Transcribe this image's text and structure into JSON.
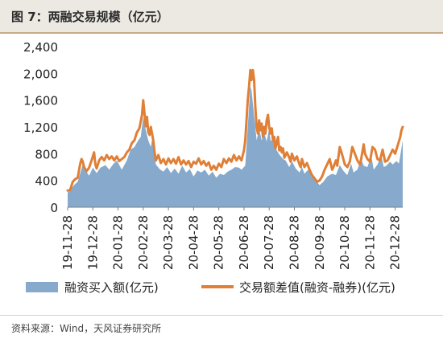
{
  "header": {
    "title": "图 7：两融交易规模（亿元）"
  },
  "footer": {
    "source": "资料来源：Wind，天风证券研究所"
  },
  "colors": {
    "area": "#86a9cc",
    "line": "#e07f36",
    "title_bg": "#ece9e3",
    "title_rule": "#c7a98a"
  },
  "chart_data": {
    "type": "area",
    "title": "两融交易规模（亿元）",
    "ylim": [
      0,
      2400
    ],
    "yticks": [
      0,
      400,
      800,
      1200,
      1600,
      2000,
      2400
    ],
    "ytick_labels": [
      "0",
      "400",
      "800",
      "1,200",
      "1,600",
      "2,000",
      "2,400"
    ],
    "xtick_labels": [
      "19-11-28",
      "19-12-28",
      "20-01-28",
      "20-02-28",
      "20-03-28",
      "20-04-28",
      "20-05-28",
      "20-06-28",
      "20-07-28",
      "20-08-28",
      "20-09-28",
      "20-10-28",
      "20-11-28",
      "20-12-28"
    ],
    "xtick_positions": [
      0,
      20,
      40,
      60,
      80,
      100,
      120,
      140,
      160,
      180,
      200,
      220,
      240,
      260
    ],
    "x_count": 267,
    "legend": {
      "position": "bottom"
    },
    "series": [
      {
        "name": "融资买入额(亿元)",
        "type": "area",
        "points": [
          [
            0,
            220
          ],
          [
            5,
            330
          ],
          [
            8,
            380
          ],
          [
            12,
            640
          ],
          [
            14,
            560
          ],
          [
            17,
            470
          ],
          [
            20,
            590
          ],
          [
            23,
            510
          ],
          [
            26,
            590
          ],
          [
            30,
            630
          ],
          [
            33,
            560
          ],
          [
            36,
            640
          ],
          [
            39,
            700
          ],
          [
            43,
            560
          ],
          [
            47,
            700
          ],
          [
            50,
            860
          ],
          [
            53,
            900
          ],
          [
            56,
            1000
          ],
          [
            58,
            1050
          ],
          [
            60,
            1350
          ],
          [
            62,
            1150
          ],
          [
            64,
            1000
          ],
          [
            66,
            900
          ],
          [
            67,
            1010
          ],
          [
            70,
            640
          ],
          [
            73,
            570
          ],
          [
            76,
            530
          ],
          [
            79,
            600
          ],
          [
            82,
            510
          ],
          [
            85,
            580
          ],
          [
            88,
            500
          ],
          [
            91,
            620
          ],
          [
            94,
            520
          ],
          [
            97,
            570
          ],
          [
            100,
            460
          ],
          [
            103,
            550
          ],
          [
            106,
            520
          ],
          [
            109,
            560
          ],
          [
            112,
            470
          ],
          [
            115,
            530
          ],
          [
            118,
            440
          ],
          [
            121,
            500
          ],
          [
            124,
            480
          ],
          [
            127,
            530
          ],
          [
            130,
            560
          ],
          [
            133,
            600
          ],
          [
            136,
            590
          ],
          [
            138,
            560
          ],
          [
            141,
            620
          ],
          [
            143,
            1200
          ],
          [
            145,
            1800
          ],
          [
            146,
            1750
          ],
          [
            147,
            1550
          ],
          [
            149,
            1200
          ],
          [
            150,
            1000
          ],
          [
            152,
            1180
          ],
          [
            154,
            1000
          ],
          [
            156,
            1120
          ],
          [
            158,
            980
          ],
          [
            160,
            1180
          ],
          [
            161,
            1000
          ],
          [
            164,
            980
          ],
          [
            166,
            850
          ],
          [
            168,
            790
          ],
          [
            171,
            720
          ],
          [
            173,
            700
          ],
          [
            176,
            600
          ],
          [
            178,
            690
          ],
          [
            181,
            580
          ],
          [
            184,
            520
          ],
          [
            186,
            600
          ],
          [
            188,
            500
          ],
          [
            191,
            560
          ],
          [
            194,
            460
          ],
          [
            197,
            400
          ],
          [
            200,
            330
          ],
          [
            203,
            380
          ],
          [
            206,
            460
          ],
          [
            210,
            500
          ],
          [
            213,
            480
          ],
          [
            216,
            630
          ],
          [
            219,
            540
          ],
          [
            222,
            480
          ],
          [
            225,
            650
          ],
          [
            227,
            520
          ],
          [
            230,
            560
          ],
          [
            233,
            720
          ],
          [
            235,
            620
          ],
          [
            238,
            600
          ],
          [
            241,
            770
          ],
          [
            243,
            560
          ],
          [
            246,
            640
          ],
          [
            249,
            770
          ],
          [
            251,
            600
          ],
          [
            253,
            620
          ],
          [
            256,
            680
          ],
          [
            258,
            640
          ],
          [
            261,
            690
          ],
          [
            263,
            650
          ],
          [
            266,
            1000
          ]
        ]
      },
      {
        "name": "交易额差值(融资-融券)(亿元)",
        "type": "line",
        "points": [
          [
            0,
            250
          ],
          [
            2,
            260
          ],
          [
            4,
            380
          ],
          [
            6,
            420
          ],
          [
            8,
            440
          ],
          [
            10,
            650
          ],
          [
            11,
            720
          ],
          [
            12,
            680
          ],
          [
            13,
            600
          ],
          [
            15,
            540
          ],
          [
            17,
            590
          ],
          [
            19,
            700
          ],
          [
            21,
            820
          ],
          [
            22,
            640
          ],
          [
            23,
            580
          ],
          [
            25,
            700
          ],
          [
            27,
            750
          ],
          [
            29,
            700
          ],
          [
            31,
            780
          ],
          [
            33,
            720
          ],
          [
            35,
            760
          ],
          [
            37,
            700
          ],
          [
            39,
            760
          ],
          [
            41,
            690
          ],
          [
            43,
            720
          ],
          [
            45,
            750
          ],
          [
            47,
            820
          ],
          [
            49,
            860
          ],
          [
            51,
            960
          ],
          [
            53,
            1000
          ],
          [
            55,
            1120
          ],
          [
            57,
            1180
          ],
          [
            58,
            1280
          ],
          [
            59,
            1380
          ],
          [
            60,
            1600
          ],
          [
            61,
            1400
          ],
          [
            62,
            1210
          ],
          [
            63,
            1350
          ],
          [
            64,
            1120
          ],
          [
            65,
            1080
          ],
          [
            66,
            1200
          ],
          [
            68,
            1000
          ],
          [
            69,
            820
          ],
          [
            70,
            700
          ],
          [
            72,
            780
          ],
          [
            74,
            660
          ],
          [
            76,
            720
          ],
          [
            78,
            640
          ],
          [
            80,
            730
          ],
          [
            82,
            660
          ],
          [
            84,
            720
          ],
          [
            86,
            650
          ],
          [
            88,
            750
          ],
          [
            90,
            640
          ],
          [
            92,
            700
          ],
          [
            94,
            640
          ],
          [
            96,
            690
          ],
          [
            98,
            600
          ],
          [
            100,
            680
          ],
          [
            102,
            650
          ],
          [
            104,
            730
          ],
          [
            106,
            640
          ],
          [
            108,
            690
          ],
          [
            110,
            620
          ],
          [
            112,
            670
          ],
          [
            114,
            560
          ],
          [
            116,
            620
          ],
          [
            118,
            560
          ],
          [
            120,
            650
          ],
          [
            122,
            600
          ],
          [
            124,
            720
          ],
          [
            126,
            660
          ],
          [
            128,
            730
          ],
          [
            130,
            680
          ],
          [
            132,
            780
          ],
          [
            134,
            700
          ],
          [
            136,
            760
          ],
          [
            138,
            700
          ],
          [
            140,
            850
          ],
          [
            141,
            1000
          ],
          [
            142,
            1300
          ],
          [
            143,
            1600
          ],
          [
            144,
            1800
          ],
          [
            145,
            2050
          ],
          [
            146,
            1900
          ],
          [
            147,
            2050
          ],
          [
            148,
            1900
          ],
          [
            149,
            1500
          ],
          [
            150,
            1200
          ],
          [
            151,
            1100
          ],
          [
            152,
            1300
          ],
          [
            153,
            1150
          ],
          [
            154,
            1250
          ],
          [
            155,
            1050
          ],
          [
            156,
            1200
          ],
          [
            157,
            1100
          ],
          [
            158,
            1300
          ],
          [
            159,
            1380
          ],
          [
            160,
            1200
          ],
          [
            161,
            1100
          ],
          [
            162,
            1180
          ],
          [
            163,
            1000
          ],
          [
            164,
            1050
          ],
          [
            165,
            880
          ],
          [
            166,
            960
          ],
          [
            167,
            1050
          ],
          [
            168,
            850
          ],
          [
            169,
            900
          ],
          [
            170,
            820
          ],
          [
            171,
            880
          ],
          [
            172,
            740
          ],
          [
            174,
            820
          ],
          [
            176,
            740
          ],
          [
            177,
            680
          ],
          [
            178,
            800
          ],
          [
            180,
            700
          ],
          [
            182,
            760
          ],
          [
            184,
            640
          ],
          [
            185,
            600
          ],
          [
            186,
            720
          ],
          [
            188,
            600
          ],
          [
            190,
            660
          ],
          [
            192,
            560
          ],
          [
            194,
            480
          ],
          [
            196,
            430
          ],
          [
            198,
            380
          ],
          [
            200,
            400
          ],
          [
            202,
            460
          ],
          [
            204,
            560
          ],
          [
            206,
            640
          ],
          [
            208,
            720
          ],
          [
            210,
            560
          ],
          [
            211,
            600
          ],
          [
            213,
            700
          ],
          [
            214,
            620
          ],
          [
            216,
            900
          ],
          [
            218,
            780
          ],
          [
            220,
            640
          ],
          [
            222,
            600
          ],
          [
            224,
            680
          ],
          [
            226,
            900
          ],
          [
            228,
            800
          ],
          [
            230,
            700
          ],
          [
            232,
            640
          ],
          [
            233,
            720
          ],
          [
            235,
            940
          ],
          [
            236,
            800
          ],
          [
            238,
            720
          ],
          [
            240,
            680
          ],
          [
            242,
            900
          ],
          [
            244,
            860
          ],
          [
            246,
            720
          ],
          [
            248,
            700
          ],
          [
            250,
            860
          ],
          [
            252,
            680
          ],
          [
            254,
            700
          ],
          [
            256,
            780
          ],
          [
            258,
            860
          ],
          [
            260,
            800
          ],
          [
            262,
            920
          ],
          [
            264,
            1050
          ],
          [
            265,
            1150
          ],
          [
            266,
            1200
          ]
        ]
      }
    ]
  }
}
